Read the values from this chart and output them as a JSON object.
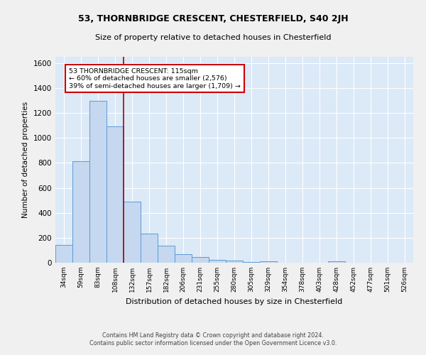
{
  "title1": "53, THORNBRIDGE CRESCENT, CHESTERFIELD, S40 2JH",
  "title2": "Size of property relative to detached houses in Chesterfield",
  "xlabel": "Distribution of detached houses by size in Chesterfield",
  "ylabel": "Number of detached properties",
  "footer1": "Contains HM Land Registry data © Crown copyright and database right 2024.",
  "footer2": "Contains public sector information licensed under the Open Government Licence v3.0.",
  "annotation_line1": "53 THORNBRIDGE CRESCENT: 115sqm",
  "annotation_line2": "← 60% of detached houses are smaller (2,576)",
  "annotation_line3": "39% of semi-detached houses are larger (1,709) →",
  "categories": [
    "34sqm",
    "59sqm",
    "83sqm",
    "108sqm",
    "132sqm",
    "157sqm",
    "182sqm",
    "206sqm",
    "231sqm",
    "255sqm",
    "280sqm",
    "305sqm",
    "329sqm",
    "354sqm",
    "378sqm",
    "403sqm",
    "428sqm",
    "452sqm",
    "477sqm",
    "501sqm",
    "526sqm"
  ],
  "values": [
    140,
    815,
    1300,
    1095,
    490,
    235,
    135,
    70,
    43,
    22,
    15,
    5,
    13,
    0,
    0,
    0,
    13,
    0,
    0,
    0,
    0
  ],
  "bar_color": "#c5d8f0",
  "bar_edge_color": "#5b9bd5",
  "red_line_x": 3.5,
  "ylim": [
    0,
    1650
  ],
  "yticks": [
    0,
    200,
    400,
    600,
    800,
    1000,
    1200,
    1400,
    1600
  ],
  "bg_color": "#dce9f7",
  "grid_color": "#ffffff",
  "annotation_box_color": "#ffffff",
  "annotation_box_edge": "#cc0000",
  "red_line_color": "#aa0000",
  "fig_bg_color": "#f0f0f0"
}
